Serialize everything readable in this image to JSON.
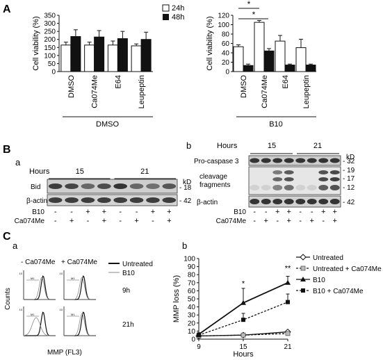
{
  "panels": {
    "A": "A",
    "B": "B",
    "B_a": "a",
    "B_b": "b",
    "C": "C",
    "C_a": "a",
    "C_b": "b"
  },
  "panelA": {
    "legend": [
      "24h",
      "48h"
    ],
    "ylabel": "Cell viability (%)",
    "significance_marks": [
      "*",
      "*"
    ]
  },
  "panelB": {
    "a": {
      "hours_label": "Hours",
      "hours": [
        "15",
        "21"
      ],
      "kd_label": "kD",
      "bands": [
        {
          "label": "Bid",
          "kd": "18"
        },
        {
          "label": "β-actin",
          "kd": "42"
        }
      ],
      "treatment_rows": [
        {
          "label": "B10",
          "signs": [
            "-",
            "-",
            "+",
            "+",
            "-",
            "-",
            "+",
            "+"
          ]
        },
        {
          "label": "Ca074Me",
          "signs": [
            "-",
            "+",
            "-",
            "+",
            "-",
            "+",
            "-",
            "+"
          ]
        }
      ]
    },
    "b": {
      "hours_label": "Hours",
      "hours": [
        "15",
        "21"
      ],
      "kd_label": "kD",
      "bands": [
        {
          "label": "Pro-caspase 3",
          "kd": "32"
        },
        {
          "label": "cleavage",
          "label2": "fragments"
        },
        {
          "label": "β-actin",
          "kd": "42"
        }
      ],
      "frag_kd": [
        "19",
        "17",
        "12"
      ],
      "treatment_rows": [
        {
          "label": "B10",
          "signs": [
            "-",
            "-",
            "+",
            "+",
            "-",
            "-",
            "+",
            "+"
          ]
        },
        {
          "label": "Ca074Me",
          "signs": [
            "-",
            "+",
            "-",
            "+",
            "-",
            "+",
            "-",
            "+"
          ]
        }
      ]
    }
  },
  "panelCa": {
    "col_headers": [
      "- Ca074Me",
      "+ Ca074Me"
    ],
    "row_labels": [
      "9h",
      "21h"
    ],
    "ylabel": "Counts",
    "xlabel": "MMP (FL3)",
    "legend": [
      "Untreated",
      "B10"
    ],
    "gate_label": "M1",
    "axis_tick": "10"
  },
  "chart_data": [
    {
      "type": "bar",
      "categories": [
        "DMSO",
        "Ca074Me",
        "E64",
        "Leupeptin"
      ],
      "group_label": "DMSO",
      "series": [
        {
          "name": "24h",
          "values": [
            165,
            165,
            165,
            160
          ],
          "errors": [
            18,
            18,
            25,
            12
          ],
          "color": "#ffffff"
        },
        {
          "name": "48h",
          "values": [
            218,
            215,
            205,
            200
          ],
          "errors": [
            42,
            40,
            45,
            45
          ],
          "color": "#111111"
        }
      ],
      "ylim": [
        0,
        350
      ],
      "yticks": [
        0,
        50,
        100,
        150,
        200,
        250,
        300,
        350
      ],
      "ylabel": "Cell viability (%)"
    },
    {
      "type": "bar",
      "categories": [
        "DMSO",
        "Ca074Me",
        "E64",
        "Leupeptin"
      ],
      "group_label": "B10",
      "series": [
        {
          "name": "24h",
          "values": [
            53,
            105,
            65,
            51
          ],
          "errors": [
            4,
            4,
            12,
            18
          ],
          "color": "#ffffff"
        },
        {
          "name": "48h",
          "values": [
            13,
            44,
            14,
            14
          ],
          "errors": [
            3,
            5,
            2,
            2
          ],
          "color": "#111111"
        }
      ],
      "ylim": [
        0,
        120
      ],
      "yticks": [
        0,
        20,
        40,
        60,
        80,
        100,
        120
      ],
      "ylabel": "Cell viability (%)"
    },
    {
      "type": "line",
      "x": [
        9,
        15,
        21
      ],
      "xticks": [
        9,
        15,
        21
      ],
      "xlabel": "Hours",
      "ylabel": "MMP loss (%)",
      "ylim": [
        0,
        100
      ],
      "yticks": [
        0,
        10,
        20,
        30,
        40,
        50,
        60,
        70,
        80,
        90,
        100
      ],
      "series": [
        {
          "name": "Untreated",
          "values": [
            4,
            5,
            9
          ],
          "marker": "diamond-open",
          "dash": false
        },
        {
          "name": "Untreated + Ca074Me",
          "values": [
            4,
            5,
            7
          ],
          "marker": "square-gray",
          "dash": true
        },
        {
          "name": "B10",
          "values": [
            6,
            45,
            70
          ],
          "errors": [
            2,
            18,
            8
          ],
          "marker": "triangle",
          "dash": false
        },
        {
          "name": "B10 + Ca074Me",
          "values": [
            5,
            24,
            46
          ],
          "errors": [
            2,
            8,
            10
          ],
          "marker": "square-black",
          "dash": true
        }
      ],
      "annotations": [
        {
          "x": 15,
          "text": "*"
        },
        {
          "x": 21,
          "text": "**"
        }
      ]
    }
  ]
}
